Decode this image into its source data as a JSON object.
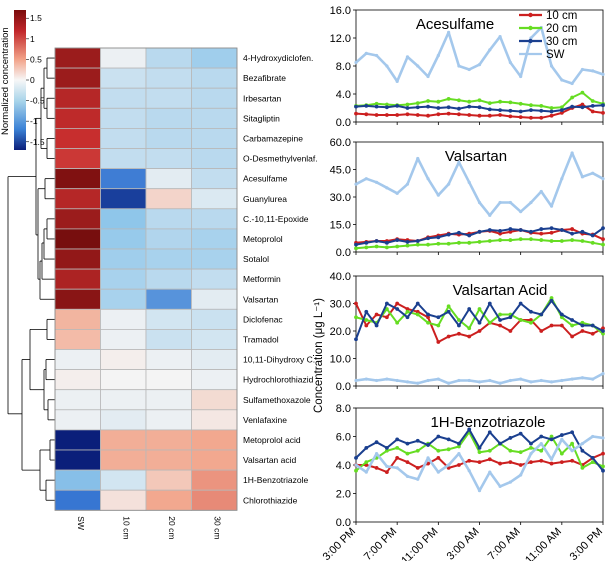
{
  "chart_data": [
    {
      "type": "heatmap",
      "title": "",
      "legend_title": "Normalized concentration",
      "colorbar_ticks": [
        1.5,
        1,
        0.5,
        0,
        -0.5,
        -1,
        -1.5
      ],
      "colorbar_tick_labels": [
        "1.5",
        "1",
        "0.5",
        "0",
        "-0.5",
        "-1",
        "-1.5"
      ],
      "value_range": [
        -1.7,
        1.7
      ],
      "columns": [
        "SW",
        "10 cm",
        "20 cm",
        "30 cm"
      ],
      "rows": [
        "4-Hydroxydiclofen.",
        "Bezafibrate",
        "Irbesartan",
        "Sitagliptin",
        "Carbamazepine",
        "O-Desmethylvenlaf.",
        "Acesulfame",
        "Guanylurea",
        "C.-10,11-Epoxide",
        "Metoprolol",
        "Sotalol",
        "Metformin",
        "Valsartan",
        "Diclofenac",
        "Tramadol",
        "10,11-Dihydroxy C.",
        "Hydrochlorothiazid",
        "Sulfamethoxazole",
        "Venlafaxine",
        "Metoprolol acid",
        "Valsartan acid",
        "1H-Benzotriazole",
        "Chlorothiazide"
      ],
      "values": [
        [
          1.45,
          -0.05,
          -0.35,
          -0.5
        ],
        [
          1.45,
          -0.25,
          -0.3,
          -0.35
        ],
        [
          1.3,
          -0.3,
          -0.3,
          -0.35
        ],
        [
          1.25,
          -0.3,
          -0.35,
          -0.35
        ],
        [
          1.2,
          -0.3,
          -0.35,
          -0.35
        ],
        [
          1.15,
          -0.3,
          -0.3,
          -0.35
        ],
        [
          1.6,
          -1.1,
          -0.1,
          -0.3
        ],
        [
          1.3,
          -1.5,
          0.25,
          -0.15
        ],
        [
          1.45,
          -0.6,
          -0.35,
          -0.35
        ],
        [
          1.65,
          -0.55,
          -0.4,
          -0.45
        ],
        [
          1.5,
          -0.5,
          -0.45,
          -0.45
        ],
        [
          1.35,
          -0.45,
          -0.35,
          -0.3
        ],
        [
          1.55,
          -0.45,
          -0.95,
          -0.1
        ],
        [
          0.5,
          -0.05,
          -0.2,
          -0.25
        ],
        [
          0.45,
          -0.05,
          -0.25,
          -0.2
        ],
        [
          -0.05,
          0.05,
          -0.05,
          -0.1
        ],
        [
          0.05,
          0.0,
          0.0,
          -0.05
        ],
        [
          -0.05,
          -0.05,
          -0.05,
          0.2
        ],
        [
          -0.05,
          -0.1,
          -0.05,
          0.1
        ],
        [
          -1.7,
          0.55,
          0.55,
          0.6
        ],
        [
          -1.7,
          0.55,
          0.55,
          0.6
        ],
        [
          -0.65,
          -0.2,
          0.35,
          0.7
        ],
        [
          -1.15,
          0.15,
          0.6,
          0.75
        ]
      ],
      "dendrogram": "rows clustered (left side)"
    },
    {
      "type": "line",
      "title": "Acesulfame",
      "ylabel": "Concentration (μg L⁻¹)",
      "ylim": [
        0,
        16
      ],
      "yticks": [
        0.0,
        4.0,
        8.0,
        12.0,
        16.0
      ],
      "ytick_labels": [
        "0.0",
        "4.0",
        "8.0",
        "12.0",
        "16.0"
      ],
      "show_legend": true,
      "x": [
        0,
        1,
        2,
        3,
        4,
        5,
        6,
        7,
        8,
        9,
        10,
        11,
        12,
        13,
        14,
        15,
        16,
        17,
        18,
        19,
        20,
        21,
        22,
        23,
        24
      ],
      "series": [
        {
          "name": "10 cm",
          "color": "#cc1f1f",
          "values": [
            1.2,
            1.1,
            1.0,
            1.0,
            1.0,
            1.1,
            1.0,
            0.9,
            1.1,
            1.2,
            1.1,
            1.0,
            0.9,
            0.9,
            1.0,
            0.8,
            0.7,
            0.6,
            0.6,
            0.9,
            1.3,
            2.0,
            2.5,
            1.5,
            1.3
          ]
        },
        {
          "name": "20 cm",
          "color": "#66dd22",
          "values": [
            2.3,
            2.4,
            2.6,
            2.5,
            2.4,
            2.5,
            2.7,
            3.0,
            2.9,
            3.3,
            3.1,
            2.9,
            3.1,
            2.7,
            2.9,
            2.8,
            2.6,
            2.4,
            2.3,
            2.0,
            2.1,
            3.5,
            4.2,
            3.0,
            2.6
          ]
        },
        {
          "name": "30 cm",
          "color": "#1a3f8f",
          "values": [
            2.2,
            2.3,
            2.2,
            2.1,
            2.3,
            2.0,
            2.1,
            2.2,
            2.0,
            2.1,
            1.9,
            2.2,
            2.1,
            1.8,
            1.7,
            1.6,
            1.5,
            1.7,
            1.6,
            1.5,
            1.7,
            2.2,
            2.1,
            2.3,
            2.4
          ]
        },
        {
          "name": "SW",
          "color": "#a4c8ec",
          "values": [
            8.5,
            9.8,
            9.5,
            8.0,
            5.8,
            9.3,
            8.0,
            6.5,
            9.5,
            12.8,
            8.0,
            7.5,
            8.2,
            10.3,
            12.2,
            8.5,
            6.5,
            12.0,
            13.5,
            8.0,
            6.0,
            5.5,
            7.5,
            7.3,
            6.8
          ]
        }
      ]
    },
    {
      "type": "line",
      "title": "Valsartan",
      "ylabel": "",
      "ylim": [
        0,
        60
      ],
      "yticks": [
        0.0,
        15.0,
        30.0,
        45.0,
        60.0
      ],
      "ytick_labels": [
        "0.0",
        "15.0",
        "30.0",
        "45.0",
        "60.0"
      ],
      "x": [
        0,
        1,
        2,
        3,
        4,
        5,
        6,
        7,
        8,
        9,
        10,
        11,
        12,
        13,
        14,
        15,
        16,
        17,
        18,
        19,
        20,
        21,
        22,
        23,
        24
      ],
      "series": [
        {
          "name": "10 cm",
          "color": "#cc1f1f",
          "values": [
            5.0,
            5.5,
            6.0,
            6.0,
            7.0,
            6.5,
            6.0,
            8.0,
            9.0,
            10.0,
            9.5,
            10.0,
            11.0,
            11.5,
            10.0,
            11.0,
            12.0,
            10.5,
            10.0,
            10.5,
            12.0,
            12.5,
            10.0,
            9.5,
            7.0
          ]
        },
        {
          "name": "20 cm",
          "color": "#66dd22",
          "values": [
            2.0,
            2.5,
            3.0,
            2.5,
            3.0,
            3.5,
            4.0,
            4.0,
            4.5,
            4.5,
            5.0,
            5.0,
            5.5,
            6.0,
            6.5,
            6.5,
            7.0,
            7.0,
            6.5,
            6.0,
            6.0,
            6.5,
            6.0,
            5.0,
            4.0
          ]
        },
        {
          "name": "30 cm",
          "color": "#1a3f8f",
          "values": [
            4.0,
            5.0,
            6.0,
            5.0,
            6.5,
            5.5,
            6.0,
            7.5,
            8.0,
            9.5,
            10.5,
            9.0,
            11.0,
            12.0,
            11.5,
            12.5,
            12.0,
            11.0,
            12.5,
            13.0,
            12.0,
            10.0,
            11.0,
            9.0,
            13.0
          ]
        },
        {
          "name": "SW",
          "color": "#a4c8ec",
          "values": [
            37.0,
            40.0,
            38.0,
            35.0,
            32.0,
            37.0,
            51.0,
            40.0,
            31.0,
            37.0,
            49.0,
            38.0,
            27.0,
            20.0,
            27.0,
            27.0,
            22.0,
            27.0,
            33.0,
            25.0,
            40.0,
            54.0,
            41.0,
            43.0,
            40.0
          ]
        }
      ]
    },
    {
      "type": "line",
      "title": "Valsartan Acid",
      "ylabel": "",
      "ylim": [
        0,
        40
      ],
      "yticks": [
        0.0,
        10.0,
        20.0,
        30.0,
        40.0
      ],
      "ytick_labels": [
        "0.0",
        "10.0",
        "20.0",
        "30.0",
        "40.0"
      ],
      "x": [
        0,
        1,
        2,
        3,
        4,
        5,
        6,
        7,
        8,
        9,
        10,
        11,
        12,
        13,
        14,
        15,
        16,
        17,
        18,
        19,
        20,
        21,
        22,
        23,
        24
      ],
      "series": [
        {
          "name": "10 cm",
          "color": "#cc1f1f",
          "values": [
            30.0,
            22.0,
            26.0,
            25.0,
            30.0,
            28.0,
            27.0,
            25.0,
            16.0,
            18.0,
            19.0,
            18.0,
            20.0,
            23.0,
            22.0,
            20.0,
            24.0,
            24.0,
            20.0,
            22.0,
            22.0,
            18.0,
            20.0,
            19.0,
            21.0
          ]
        },
        {
          "name": "20 cm",
          "color": "#66dd22",
          "values": [
            25.0,
            24.0,
            23.0,
            28.0,
            23.0,
            27.0,
            26.0,
            23.0,
            22.0,
            29.0,
            24.0,
            21.0,
            28.0,
            23.0,
            26.0,
            26.0,
            24.0,
            23.0,
            26.0,
            32.0,
            25.0,
            22.0,
            23.0,
            22.0,
            19.0
          ]
        },
        {
          "name": "30 cm",
          "color": "#1a3f8f",
          "values": [
            17.0,
            27.0,
            22.0,
            30.0,
            28.0,
            25.0,
            30.0,
            26.0,
            25.0,
            27.0,
            22.0,
            28.0,
            23.0,
            30.0,
            24.0,
            25.0,
            30.0,
            27.0,
            26.0,
            31.0,
            26.0,
            24.0,
            22.0,
            22.0,
            20.0
          ]
        },
        {
          "name": "SW",
          "color": "#a4c8ec",
          "values": [
            2.0,
            2.5,
            2.0,
            2.5,
            2.0,
            1.5,
            1.0,
            2.0,
            2.5,
            1.0,
            2.0,
            2.0,
            1.5,
            2.0,
            1.0,
            2.0,
            2.5,
            1.5,
            2.0,
            1.5,
            2.0,
            2.5,
            3.0,
            2.5,
            4.5
          ]
        }
      ]
    },
    {
      "type": "line",
      "title": "1H-Benzotriazole",
      "ylabel": "",
      "ylim": [
        0,
        8
      ],
      "yticks": [
        0.0,
        2.0,
        4.0,
        6.0,
        8.0
      ],
      "ytick_labels": [
        "0.0",
        "2.0",
        "4.0",
        "6.0",
        "8.0"
      ],
      "x": [
        0,
        1,
        2,
        3,
        4,
        5,
        6,
        7,
        8,
        9,
        10,
        11,
        12,
        13,
        14,
        15,
        16,
        17,
        18,
        19,
        20,
        21,
        22,
        23,
        24
      ],
      "xtick_labels": [
        "3:00 PM",
        "7:00 PM",
        "11:00 PM",
        "3:00 AM",
        "7:00 AM",
        "11:00 AM",
        "3:00 PM"
      ],
      "series": [
        {
          "name": "10 cm",
          "color": "#cc1f1f",
          "values": [
            4.0,
            4.0,
            3.8,
            3.5,
            4.5,
            4.2,
            3.8,
            4.1,
            4.5,
            3.8,
            4.0,
            4.3,
            4.2,
            4.4,
            4.1,
            4.2,
            4.0,
            4.2,
            4.3,
            4.1,
            4.2,
            4.3,
            4.0,
            4.5,
            4.8
          ]
        },
        {
          "name": "20 cm",
          "color": "#66dd22",
          "values": [
            3.6,
            4.2,
            4.5,
            5.0,
            5.2,
            4.8,
            5.0,
            5.5,
            5.0,
            5.1,
            5.3,
            6.3,
            4.9,
            5.0,
            5.5,
            5.0,
            4.9,
            5.2,
            5.0,
            6.0,
            4.8,
            5.5,
            3.8,
            4.2,
            3.9
          ]
        },
        {
          "name": "30 cm",
          "color": "#1a3f8f",
          "values": [
            4.5,
            5.2,
            5.6,
            5.2,
            5.8,
            5.5,
            5.7,
            5.4,
            6.0,
            5.8,
            5.5,
            6.5,
            5.2,
            6.3,
            5.5,
            5.9,
            6.2,
            5.5,
            6.0,
            5.8,
            6.1,
            6.3,
            5.0,
            4.5,
            3.6
          ]
        },
        {
          "name": "SW",
          "color": "#a4c8ec",
          "values": [
            4.0,
            3.5,
            4.8,
            3.9,
            3.8,
            3.2,
            3.0,
            4.5,
            3.5,
            4.0,
            4.8,
            3.6,
            2.2,
            3.5,
            2.5,
            2.8,
            3.3,
            4.8,
            5.5,
            4.4,
            5.8,
            5.0,
            5.5,
            6.0,
            5.9
          ]
        }
      ]
    }
  ]
}
